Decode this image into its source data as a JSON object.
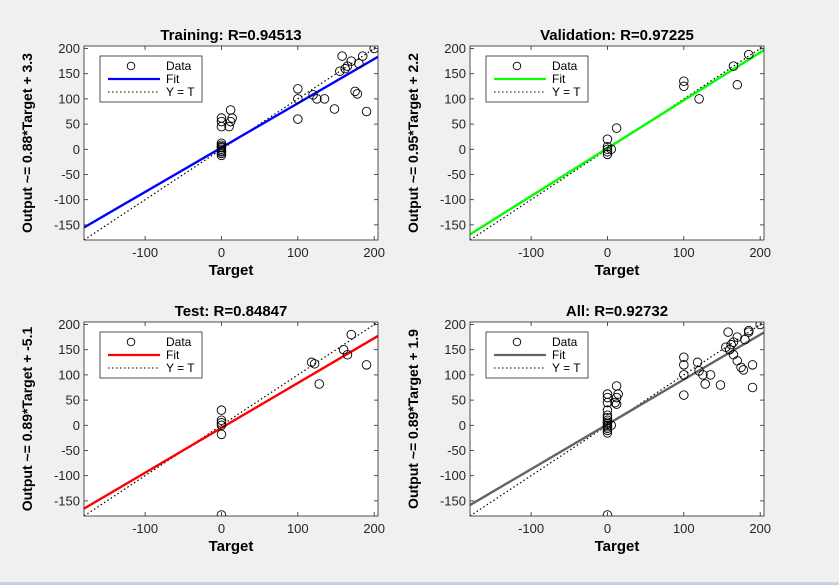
{
  "window": {
    "background": "#f0f0f0"
  },
  "chart_data": [
    {
      "type": "scatter",
      "title": "Training: R=0.94513",
      "xlabel": "Target",
      "ylabel": "Output ~= 0.88*Target + 3.3",
      "xlim": [
        -180,
        205
      ],
      "ylim": [
        -180,
        205
      ],
      "xticks": [
        -100,
        0,
        100,
        200
      ],
      "yticks": [
        -150,
        -100,
        -50,
        0,
        50,
        100,
        150,
        200
      ],
      "xtick_labels": [
        "-100",
        "0",
        "100",
        "200"
      ],
      "ytick_labels": [
        "-150",
        "-100",
        "-50",
        "0",
        "50",
        "100",
        "150",
        "200"
      ],
      "legend": {
        "placement": "top-left",
        "entries": [
          "Data",
          "Fit",
          "Y = T"
        ]
      },
      "fit": {
        "slope": 0.88,
        "intercept": 3.3,
        "color": "#0000ff"
      },
      "identity_line": true,
      "points": [
        [
          0,
          0
        ],
        [
          0,
          3
        ],
        [
          0,
          -3
        ],
        [
          0,
          -8
        ],
        [
          0,
          -12
        ],
        [
          0,
          8
        ],
        [
          0,
          12
        ],
        [
          0,
          5
        ],
        [
          0,
          -5
        ],
        [
          0,
          45
        ],
        [
          0,
          55
        ],
        [
          0,
          62
        ],
        [
          10,
          45
        ],
        [
          12,
          55
        ],
        [
          14,
          62
        ],
        [
          12,
          78
        ],
        [
          100,
          60
        ],
        [
          100,
          100
        ],
        [
          100,
          120
        ],
        [
          120,
          108
        ],
        [
          125,
          100
        ],
        [
          135,
          100
        ],
        [
          148,
          80
        ],
        [
          155,
          155
        ],
        [
          158,
          185
        ],
        [
          162,
          160
        ],
        [
          165,
          165
        ],
        [
          170,
          175
        ],
        [
          175,
          115
        ],
        [
          178,
          110
        ],
        [
          180,
          170
        ],
        [
          185,
          185
        ],
        [
          190,
          75
        ],
        [
          200,
          200
        ]
      ]
    },
    {
      "type": "scatter",
      "title": "Validation: R=0.97225",
      "xlabel": "Target",
      "ylabel": "Output ~= 0.95*Target + 2.2",
      "xlim": [
        -180,
        205
      ],
      "ylim": [
        -180,
        205
      ],
      "xticks": [
        -100,
        0,
        100,
        200
      ],
      "yticks": [
        -150,
        -100,
        -50,
        0,
        50,
        100,
        150,
        200
      ],
      "xtick_labels": [
        "-100",
        "0",
        "100",
        "200"
      ],
      "ytick_labels": [
        "-150",
        "-100",
        "-50",
        "0",
        "50",
        "100",
        "150",
        "200"
      ],
      "legend": {
        "placement": "top-left",
        "entries": [
          "Data",
          "Fit",
          "Y = T"
        ]
      },
      "fit": {
        "slope": 0.95,
        "intercept": 2.2,
        "color": "#00ff00"
      },
      "identity_line": true,
      "points": [
        [
          0,
          0
        ],
        [
          0,
          5
        ],
        [
          0,
          -5
        ],
        [
          0,
          -10
        ],
        [
          0,
          20
        ],
        [
          5,
          0
        ],
        [
          12,
          42
        ],
        [
          100,
          125
        ],
        [
          100,
          135
        ],
        [
          120,
          100
        ],
        [
          165,
          165
        ],
        [
          170,
          128
        ],
        [
          185,
          188
        ]
      ]
    },
    {
      "type": "scatter",
      "title": "Test: R=0.84847",
      "xlabel": "Target",
      "ylabel": "Output ~= 0.89*Target + -5.1",
      "xlim": [
        -180,
        205
      ],
      "ylim": [
        -180,
        205
      ],
      "xticks": [
        -100,
        0,
        100,
        200
      ],
      "yticks": [
        -150,
        -100,
        -50,
        0,
        50,
        100,
        150,
        200
      ],
      "xtick_labels": [
        "-100",
        "0",
        "100",
        "200"
      ],
      "ytick_labels": [
        "-150",
        "-100",
        "-50",
        "0",
        "50",
        "100",
        "150",
        "200"
      ],
      "legend": {
        "placement": "top-left",
        "entries": [
          "Data",
          "Fit",
          "Y = T"
        ]
      },
      "fit": {
        "slope": 0.89,
        "intercept": -5.1,
        "color": "#ff0000"
      },
      "identity_line": true,
      "points": [
        [
          0,
          0
        ],
        [
          0,
          5
        ],
        [
          0,
          10
        ],
        [
          0,
          -18
        ],
        [
          0,
          30
        ],
        [
          0,
          -180
        ],
        [
          118,
          125
        ],
        [
          122,
          122
        ],
        [
          128,
          82
        ],
        [
          160,
          150
        ],
        [
          165,
          140
        ],
        [
          170,
          180
        ],
        [
          190,
          120
        ]
      ]
    },
    {
      "type": "scatter",
      "title": "All: R=0.92732",
      "xlabel": "Target",
      "ylabel": "Output ~= 0.89*Target + 1.9",
      "xlim": [
        -180,
        205
      ],
      "ylim": [
        -180,
        205
      ],
      "xticks": [
        -100,
        0,
        100,
        200
      ],
      "yticks": [
        -150,
        -100,
        -50,
        0,
        50,
        100,
        150,
        200
      ],
      "xtick_labels": [
        "-100",
        "0",
        "100",
        "200"
      ],
      "ytick_labels": [
        "-150",
        "-100",
        "-50",
        "0",
        "50",
        "100",
        "150",
        "200"
      ],
      "legend": {
        "placement": "top-left",
        "entries": [
          "Data",
          "Fit",
          "Y = T"
        ]
      },
      "fit": {
        "slope": 0.89,
        "intercept": 1.9,
        "color": "#646464"
      },
      "identity_line": true,
      "points": [
        [
          0,
          0
        ],
        [
          0,
          3
        ],
        [
          0,
          -3
        ],
        [
          0,
          6
        ],
        [
          0,
          -6
        ],
        [
          0,
          10
        ],
        [
          0,
          -10
        ],
        [
          0,
          -15
        ],
        [
          0,
          15
        ],
        [
          0,
          20
        ],
        [
          0,
          30
        ],
        [
          0,
          45
        ],
        [
          0,
          55
        ],
        [
          0,
          62
        ],
        [
          0,
          -180
        ],
        [
          10,
          45
        ],
        [
          12,
          55
        ],
        [
          14,
          62
        ],
        [
          12,
          78
        ],
        [
          5,
          0
        ],
        [
          12,
          42
        ],
        [
          100,
          60
        ],
        [
          100,
          100
        ],
        [
          100,
          120
        ],
        [
          100,
          135
        ],
        [
          118,
          125
        ],
        [
          120,
          108
        ],
        [
          125,
          100
        ],
        [
          128,
          82
        ],
        [
          135,
          100
        ],
        [
          148,
          80
        ],
        [
          155,
          155
        ],
        [
          158,
          185
        ],
        [
          160,
          150
        ],
        [
          162,
          160
        ],
        [
          165,
          140
        ],
        [
          165,
          165
        ],
        [
          170,
          175
        ],
        [
          170,
          128
        ],
        [
          175,
          115
        ],
        [
          178,
          110
        ],
        [
          180,
          170
        ],
        [
          185,
          185
        ],
        [
          185,
          188
        ],
        [
          190,
          120
        ],
        [
          190,
          75
        ],
        [
          200,
          200
        ]
      ]
    }
  ]
}
